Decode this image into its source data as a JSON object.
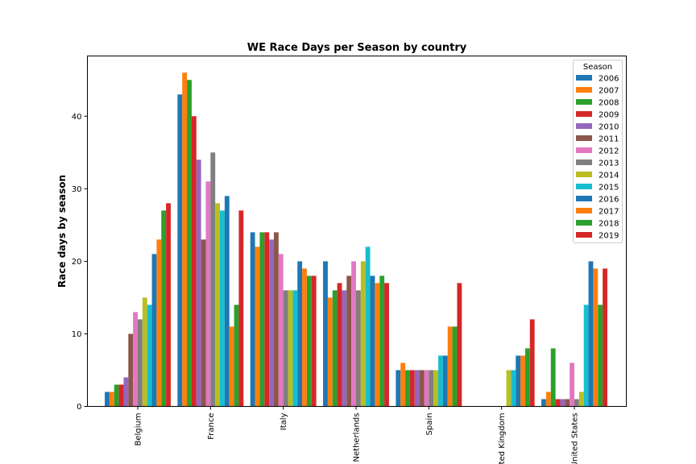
{
  "chart_data": {
    "type": "bar",
    "title": "WE Race Days per Season by country",
    "xlabel": "",
    "ylabel": "Race days by season",
    "ylim": [
      0,
      48.3
    ],
    "yticks": [
      0,
      10,
      20,
      30,
      40
    ],
    "grid": false,
    "legend_title": "Season",
    "legend_position": "top-right",
    "categories": [
      "Belgium",
      "France",
      "Italy",
      "Netherlands",
      "Spain",
      "United Kingdom",
      "United States"
    ],
    "series": [
      {
        "name": "2006",
        "color": "#1f77b4",
        "values": [
          2,
          43,
          24,
          20,
          5,
          0,
          1
        ]
      },
      {
        "name": "2007",
        "color": "#ff7f0e",
        "values": [
          2,
          46,
          22,
          15,
          6,
          0,
          2
        ]
      },
      {
        "name": "2008",
        "color": "#2ca02c",
        "values": [
          3,
          45,
          24,
          16,
          5,
          0,
          8
        ]
      },
      {
        "name": "2009",
        "color": "#d62728",
        "values": [
          3,
          40,
          24,
          17,
          5,
          0,
          1
        ]
      },
      {
        "name": "2010",
        "color": "#9467bd",
        "values": [
          4,
          34,
          23,
          16,
          5,
          0,
          1
        ]
      },
      {
        "name": "2011",
        "color": "#8c564b",
        "values": [
          10,
          23,
          24,
          18,
          5,
          0,
          1
        ]
      },
      {
        "name": "2012",
        "color": "#e377c2",
        "values": [
          13,
          31,
          21,
          20,
          5,
          0,
          6
        ]
      },
      {
        "name": "2013",
        "color": "#7f7f7f",
        "values": [
          12,
          35,
          16,
          16,
          5,
          0,
          1
        ]
      },
      {
        "name": "2014",
        "color": "#bcbd22",
        "values": [
          15,
          28,
          16,
          20,
          5,
          5,
          2
        ]
      },
      {
        "name": "2015",
        "color": "#17becf",
        "values": [
          14,
          27,
          16,
          22,
          7,
          5,
          14
        ]
      },
      {
        "name": "2016",
        "color": "#1f77b4",
        "values": [
          21,
          29,
          20,
          18,
          7,
          7,
          20
        ]
      },
      {
        "name": "2017",
        "color": "#ff7f0e",
        "values": [
          23,
          11,
          19,
          17,
          11,
          7,
          19
        ]
      },
      {
        "name": "2018",
        "color": "#2ca02c",
        "values": [
          27,
          14,
          18,
          18,
          11,
          8,
          14
        ]
      },
      {
        "name": "2019",
        "color": "#d62728",
        "values": [
          28,
          27,
          18,
          17,
          17,
          12,
          19
        ]
      }
    ]
  }
}
